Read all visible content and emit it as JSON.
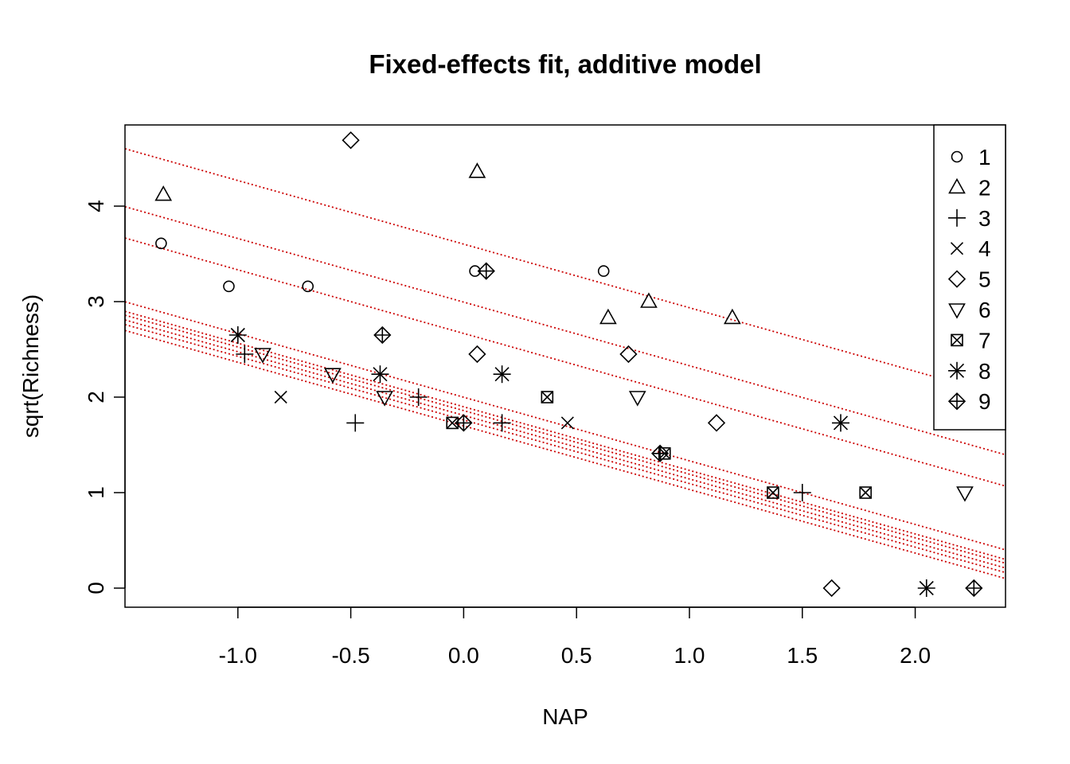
{
  "chart_data": {
    "type": "scatter",
    "title": "Fixed-effects fit, additive model",
    "xlabel": "NAP",
    "ylabel": "sqrt(Richness)",
    "xlim": [
      -1.5,
      2.4
    ],
    "ylim": [
      -0.2,
      4.85
    ],
    "xticks": [
      -1.0,
      -0.5,
      0.0,
      0.5,
      1.0,
      1.5,
      2.0
    ],
    "xtick_labels": [
      "-1.0",
      "-0.5",
      "0.0",
      "0.5",
      "1.0",
      "1.5",
      "2.0"
    ],
    "yticks": [
      0,
      1,
      2,
      3,
      4
    ],
    "ytick_labels": [
      "0",
      "1",
      "2",
      "3",
      "4"
    ],
    "grid": false,
    "legend_position": "top-right",
    "line_color": "#cc0000",
    "fit_slope": -0.666,
    "series": [
      {
        "name": "1",
        "marker": "circle",
        "intercept": 2.667,
        "points": [
          [
            -1.34,
            3.61
          ],
          [
            -1.04,
            3.16
          ],
          [
            -0.69,
            3.16
          ],
          [
            0.05,
            3.32
          ],
          [
            0.62,
            3.32
          ]
        ]
      },
      {
        "name": "2",
        "marker": "triangle-up",
        "intercept": 3.602,
        "points": [
          [
            -1.33,
            4.12
          ],
          [
            0.06,
            4.36
          ],
          [
            0.64,
            2.83
          ],
          [
            0.82,
            3.0
          ],
          [
            1.19,
            2.83
          ]
        ]
      },
      {
        "name": "3",
        "marker": "plus",
        "intercept": 1.999,
        "points": [
          [
            -0.97,
            2.45
          ],
          [
            -0.48,
            1.73
          ],
          [
            -0.2,
            2.0
          ],
          [
            0.17,
            1.73
          ],
          [
            1.5,
            1.0
          ]
        ]
      },
      {
        "name": "4",
        "marker": "cross",
        "intercept": 1.809,
        "points": [
          [
            -0.81,
            2.0
          ],
          [
            0.46,
            1.73
          ]
        ]
      },
      {
        "name": "5",
        "marker": "diamond",
        "intercept": 2.995,
        "points": [
          [
            -0.5,
            4.69
          ],
          [
            0.06,
            2.45
          ],
          [
            0.73,
            2.45
          ],
          [
            1.12,
            1.73
          ],
          [
            1.63,
            0.0
          ]
        ]
      },
      {
        "name": "6",
        "marker": "triangle-down",
        "intercept": 1.761,
        "points": [
          [
            -0.89,
            2.45
          ],
          [
            -0.58,
            2.24
          ],
          [
            -0.35,
            2.0
          ],
          [
            0.77,
            2.0
          ],
          [
            2.22,
            1.0
          ]
        ]
      },
      {
        "name": "7",
        "marker": "square-cross",
        "intercept": 1.899,
        "points": [
          [
            -0.05,
            1.73
          ],
          [
            0.37,
            2.0
          ],
          [
            0.89,
            1.41
          ],
          [
            1.37,
            1.0
          ],
          [
            1.78,
            1.0
          ]
        ]
      },
      {
        "name": "8",
        "marker": "asterisk",
        "intercept": 1.859,
        "points": [
          [
            -1.0,
            2.65
          ],
          [
            -0.37,
            2.24
          ],
          [
            0.17,
            2.24
          ],
          [
            1.67,
            1.73
          ],
          [
            2.05,
            0.0
          ]
        ]
      },
      {
        "name": "9",
        "marker": "diamond-plus",
        "intercept": 1.699,
        "points": [
          [
            -0.36,
            2.65
          ],
          [
            0.0,
            1.73
          ],
          [
            0.1,
            3.32
          ],
          [
            0.87,
            1.41
          ],
          [
            2.26,
            0.0
          ]
        ]
      }
    ]
  }
}
